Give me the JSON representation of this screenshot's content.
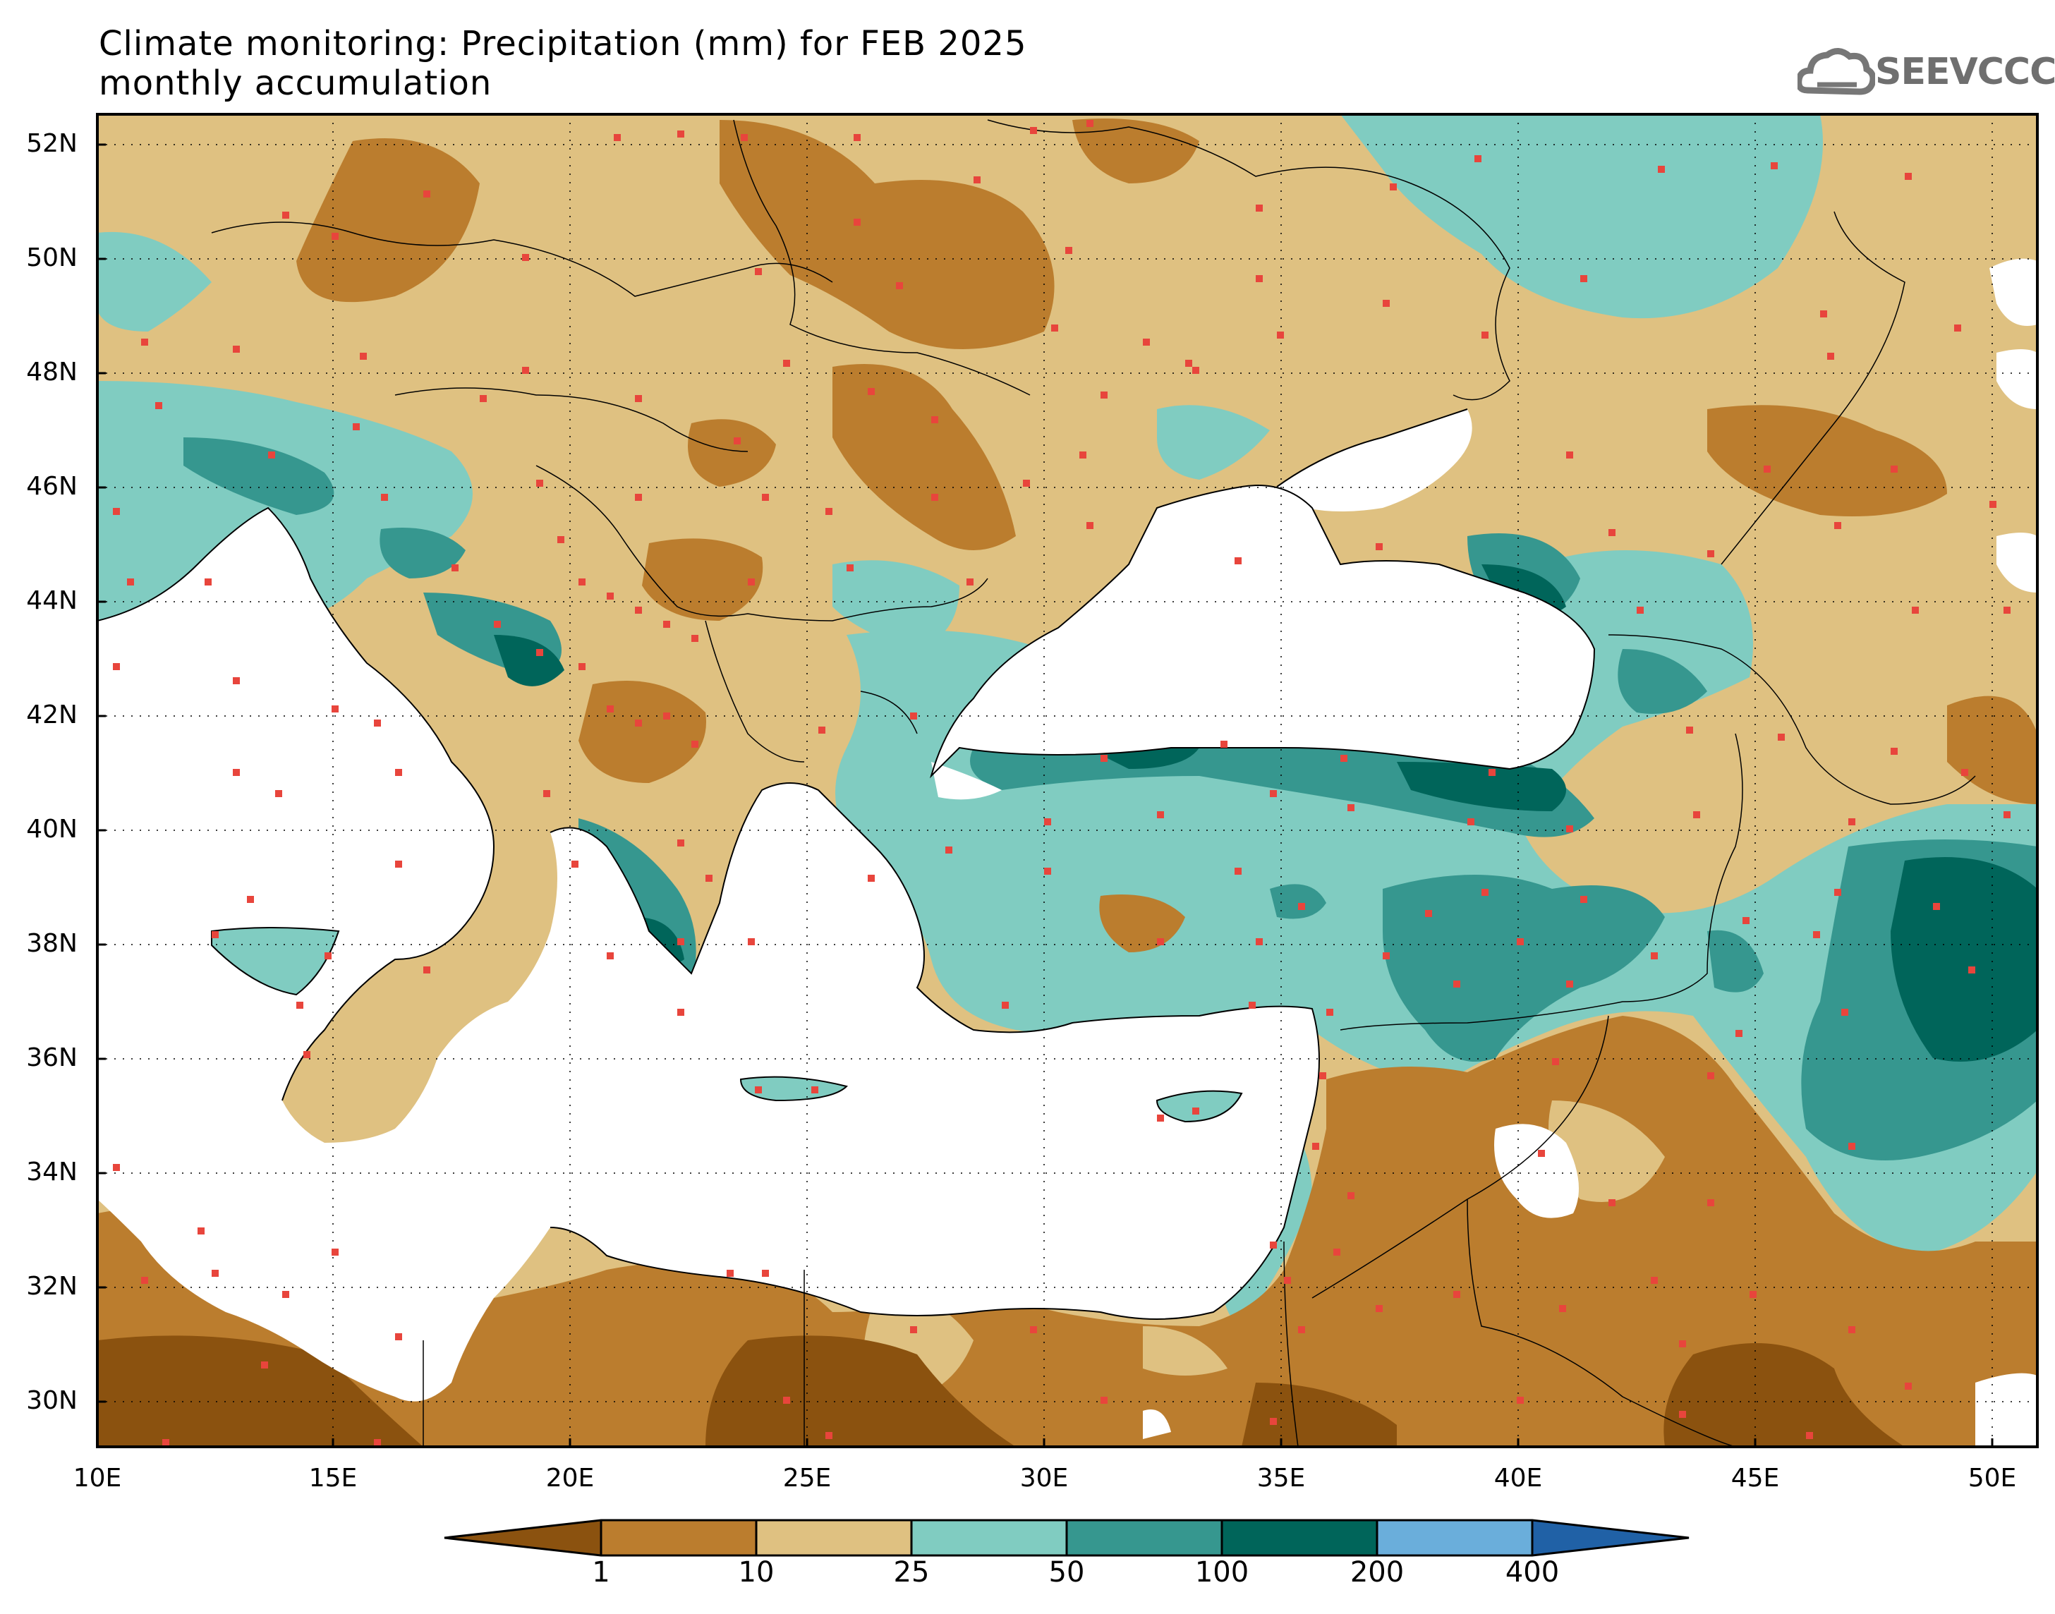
{
  "title_line1": "Climate monitoring: Precipitation (mm) for FEB 2025",
  "title_line2": "monthly accumulation",
  "logo_text": "SEEVCCC",
  "logo_icon": "cloud-icon",
  "lat_labels": [
    "52N",
    "50N",
    "48N",
    "46N",
    "44N",
    "42N",
    "40N",
    "38N",
    "36N",
    "34N",
    "32N",
    "30N"
  ],
  "lon_labels": [
    "10E",
    "15E",
    "20E",
    "25E",
    "30E",
    "35E",
    "40E",
    "45E",
    "50E"
  ],
  "colorbar": {
    "levels": [
      "1",
      "10",
      "25",
      "50",
      "100",
      "200",
      "400"
    ],
    "colors": [
      "#8b520f",
      "#bb7d2e",
      "#dfc181",
      "#80ccc1",
      "#36978f",
      "#00655a",
      "#6aaedb",
      "#2061a6"
    ]
  }
}
